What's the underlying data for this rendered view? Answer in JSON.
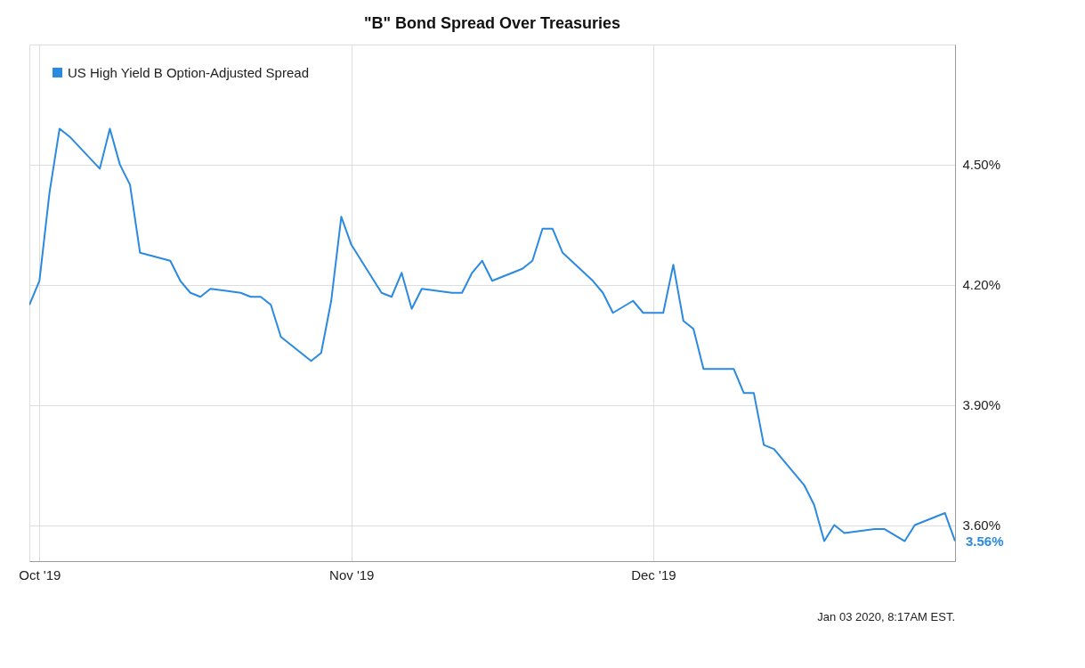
{
  "chart_data": {
    "type": "line",
    "title": "\"B\" Bond Spread Over Treasuries",
    "x": [
      "2019-09-30",
      "2019-10-01",
      "2019-10-02",
      "2019-10-03",
      "2019-10-04",
      "2019-10-07",
      "2019-10-08",
      "2019-10-09",
      "2019-10-10",
      "2019-10-11",
      "2019-10-14",
      "2019-10-15",
      "2019-10-16",
      "2019-10-17",
      "2019-10-18",
      "2019-10-21",
      "2019-10-22",
      "2019-10-23",
      "2019-10-24",
      "2019-10-25",
      "2019-10-28",
      "2019-10-29",
      "2019-10-30",
      "2019-10-31",
      "2019-11-01",
      "2019-11-04",
      "2019-11-05",
      "2019-11-06",
      "2019-11-07",
      "2019-11-08",
      "2019-11-11",
      "2019-11-12",
      "2019-11-13",
      "2019-11-14",
      "2019-11-15",
      "2019-11-18",
      "2019-11-19",
      "2019-11-20",
      "2019-11-21",
      "2019-11-22",
      "2019-11-25",
      "2019-11-26",
      "2019-11-27",
      "2019-11-29",
      "2019-11-30",
      "2019-12-02",
      "2019-12-03",
      "2019-12-04",
      "2019-12-05",
      "2019-12-06",
      "2019-12-09",
      "2019-12-10",
      "2019-12-11",
      "2019-12-12",
      "2019-12-13",
      "2019-12-16",
      "2019-12-17",
      "2019-12-18",
      "2019-12-19",
      "2019-12-20",
      "2019-12-23",
      "2019-12-24",
      "2019-12-26",
      "2019-12-27",
      "2019-12-30",
      "2019-12-31"
    ],
    "series": [
      {
        "name": "US High Yield B Option-Adjusted Spread",
        "color": "#2a8ae0",
        "values": [
          4.15,
          4.21,
          4.43,
          4.59,
          4.57,
          4.49,
          4.59,
          4.5,
          4.45,
          4.28,
          4.26,
          4.21,
          4.18,
          4.17,
          4.19,
          4.18,
          4.17,
          4.17,
          4.15,
          4.07,
          4.01,
          4.03,
          4.16,
          4.37,
          4.3,
          4.18,
          4.17,
          4.23,
          4.14,
          4.19,
          4.18,
          4.18,
          4.23,
          4.26,
          4.21,
          4.24,
          4.26,
          4.34,
          4.34,
          4.28,
          4.21,
          4.18,
          4.13,
          4.16,
          4.13,
          4.13,
          4.25,
          4.11,
          4.09,
          3.99,
          3.99,
          3.93,
          3.93,
          3.8,
          3.79,
          3.7,
          3.65,
          3.56,
          3.6,
          3.58,
          3.59,
          3.59,
          3.56,
          3.6,
          3.63,
          3.56
        ]
      }
    ],
    "xlim": [
      "2019-09-30",
      "2019-12-31"
    ],
    "xticks": [
      {
        "value": "2019-10-01",
        "label": "Oct '19"
      },
      {
        "value": "2019-11-01",
        "label": "Nov '19"
      },
      {
        "value": "2019-12-01",
        "label": "Dec '19"
      }
    ],
    "ylim": [
      3.51,
      4.8
    ],
    "yticks": [
      {
        "value": 3.6,
        "label": "3.60%"
      },
      {
        "value": 3.9,
        "label": "3.90%"
      },
      {
        "value": 4.2,
        "label": "4.20%"
      },
      {
        "value": 4.5,
        "label": "4.50%"
      }
    ],
    "annotations": [
      {
        "text": "3.56%",
        "x": "2019-12-31",
        "y": 3.56
      },
      "Jan 03 2020, 8:17AM EST."
    ],
    "grid": true,
    "legend": "top left",
    "marker": "none",
    "line_style": "solid"
  }
}
